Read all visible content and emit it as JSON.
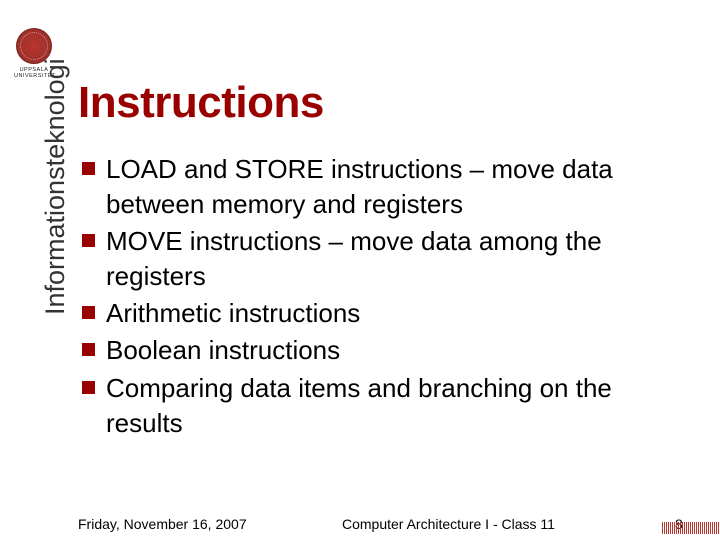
{
  "logo": {
    "line1": "UPPSALA",
    "line2": "UNIVERSITET"
  },
  "title": "Instructions",
  "sidebar_label": "Informationsteknologi",
  "bullets": [
    "LOAD and STORE instructions – move data between memory and registers",
    "MOVE instructions – move data among the registers",
    "Arithmetic instructions",
    "Boolean instructions",
    "Comparing data items and branching on the results"
  ],
  "footer": {
    "date": "Friday, November 16, 2007",
    "center": "Computer Architecture I - Class 11",
    "page": "8"
  },
  "colors": {
    "title_color": "#990000",
    "bullet_color": "#990000",
    "text_color": "#000000",
    "sidebar_color": "#333333",
    "background": "#ffffff"
  },
  "typography": {
    "title_fontsize": 44,
    "body_fontsize": 26,
    "sidebar_fontsize": 27,
    "footer_fontsize": 14,
    "font_family": "Arial"
  }
}
